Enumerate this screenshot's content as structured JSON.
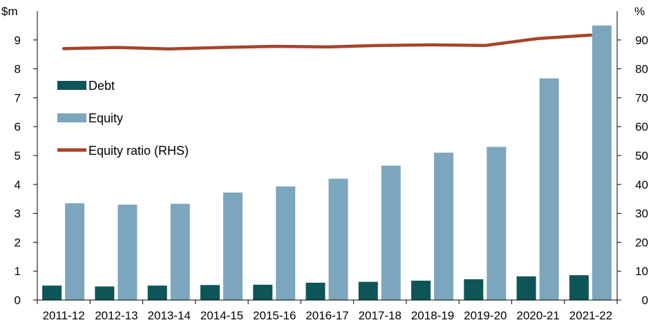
{
  "chart_data": {
    "type": "bar",
    "categories": [
      "2011-12",
      "2012-13",
      "2013-14",
      "2014-15",
      "2015-16",
      "2016-17",
      "2017-18",
      "2018-19",
      "2019-20",
      "2020-21",
      "2021-22"
    ],
    "series": [
      {
        "name": "Debt",
        "type": "bar",
        "axis": "left",
        "color": "#0e5558",
        "values": [
          0.5,
          0.47,
          0.5,
          0.52,
          0.53,
          0.6,
          0.63,
          0.67,
          0.72,
          0.82,
          0.86
        ]
      },
      {
        "name": "Equity",
        "type": "bar",
        "axis": "left",
        "color": "#7ba6bd",
        "values": [
          3.35,
          3.3,
          3.33,
          3.72,
          3.93,
          4.2,
          4.65,
          5.1,
          5.3,
          7.67,
          9.5
        ]
      },
      {
        "name": "Equity ratio (RHS)",
        "type": "line",
        "axis": "right",
        "color": "#a8422a",
        "values": [
          87,
          87.4,
          86.9,
          87.4,
          87.8,
          87.6,
          88.1,
          88.3,
          88.1,
          90.5,
          91.7
        ]
      }
    ],
    "left_axis": {
      "unit": "$m",
      "min": 0,
      "max": 10,
      "ticks": [
        0,
        1,
        2,
        3,
        4,
        5,
        6,
        7,
        8,
        9
      ]
    },
    "right_axis": {
      "unit": "%",
      "min": 0,
      "max": 100,
      "ticks": [
        0,
        10,
        20,
        30,
        40,
        50,
        60,
        70,
        80,
        90
      ]
    },
    "legend_placement": "left",
    "grid": false
  }
}
